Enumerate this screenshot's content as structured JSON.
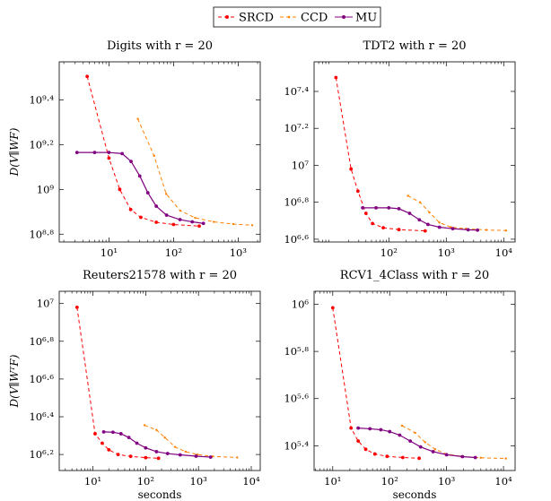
{
  "legend": {
    "position": "top-center",
    "entries": [
      {
        "name": "SRCD",
        "color": "#ff0000",
        "dash": "4,3",
        "marker": "dot"
      },
      {
        "name": "CCD",
        "color": "#ff8000",
        "dash": "4,3",
        "marker": "small-dot"
      },
      {
        "name": "MU",
        "color": "#800080",
        "dash": "",
        "marker": "dot"
      }
    ]
  },
  "chart_data": [
    {
      "type": "line",
      "title": "Digits with r = 20",
      "ylabel": "D(V∥WF)",
      "xlabel": "",
      "xscale": "log",
      "yscale": "log",
      "xlim": [
        1.7,
        2200
      ],
      "ylim_log10": [
        8.765,
        9.57
      ],
      "xticks": [
        {
          "v": 10,
          "label": "10¹"
        },
        {
          "v": 100,
          "label": "10²"
        },
        {
          "v": 1000,
          "label": "10³"
        }
      ],
      "yticks": [
        {
          "v": 8.8,
          "label": "10⁸·⁸"
        },
        {
          "v": 9,
          "label": "10⁹"
        },
        {
          "v": 9.2,
          "label": "10⁹·²"
        },
        {
          "v": 9.4,
          "label": "10⁹·⁴"
        }
      ],
      "grid": false,
      "series": [
        {
          "name": "SRCD",
          "points": [
            [
              4.6,
              9.505
            ],
            [
              10,
              9.14
            ],
            [
              14.7,
              9.0
            ],
            [
              21.7,
              8.91
            ],
            [
              31.2,
              8.875
            ],
            [
              54,
              8.853
            ],
            [
              100,
              8.843
            ],
            [
              250,
              8.836
            ]
          ]
        },
        {
          "name": "CCD",
          "points": [
            [
              28,
              9.315
            ],
            [
              50,
              9.15
            ],
            [
              77,
              8.98
            ],
            [
              127,
              8.905
            ],
            [
              216,
              8.873
            ],
            [
              420,
              8.855
            ],
            [
              840,
              8.845
            ],
            [
              1650,
              8.84
            ]
          ]
        },
        {
          "name": "MU",
          "points": [
            [
              3.2,
              9.165
            ],
            [
              6,
              9.165
            ],
            [
              10,
              9.165
            ],
            [
              16,
              9.16
            ],
            [
              22,
              9.125
            ],
            [
              30,
              9.06
            ],
            [
              40,
              8.985
            ],
            [
              54,
              8.925
            ],
            [
              78,
              8.885
            ],
            [
              126,
              8.865
            ],
            [
              195,
              8.855
            ],
            [
              290,
              8.848
            ]
          ]
        }
      ]
    },
    {
      "type": "line",
      "title": "TDT2 with r = 20",
      "ylabel": "",
      "xlabel": "",
      "xscale": "log",
      "yscale": "log",
      "xlim": [
        5,
        15800
      ],
      "ylim_log10": [
        6.585,
        7.56
      ],
      "xticks": [
        {
          "v": 100,
          "label": "10²"
        },
        {
          "v": 1000,
          "label": "10³"
        },
        {
          "v": 10000,
          "label": "10⁴"
        }
      ],
      "yticks": [
        {
          "v": 6.6,
          "label": "10⁶·⁶"
        },
        {
          "v": 6.8,
          "label": "10⁶·⁸"
        },
        {
          "v": 7,
          "label": "10⁷"
        },
        {
          "v": 7.2,
          "label": "10⁷·²"
        },
        {
          "v": 7.4,
          "label": "10⁷·⁴"
        }
      ],
      "grid": false,
      "series": [
        {
          "name": "SRCD",
          "points": [
            [
              12,
              7.475
            ],
            [
              22,
              6.98
            ],
            [
              29,
              6.86
            ],
            [
              40,
              6.74
            ],
            [
              52,
              6.685
            ],
            [
              80,
              6.662
            ],
            [
              150,
              6.652
            ],
            [
              430,
              6.645
            ]
          ]
        },
        {
          "name": "CCD",
          "points": [
            [
              215,
              6.835
            ],
            [
              350,
              6.8
            ],
            [
              510,
              6.745
            ],
            [
              760,
              6.69
            ],
            [
              1200,
              6.665
            ],
            [
              2200,
              6.657
            ],
            [
              5000,
              6.65
            ],
            [
              11000,
              6.647
            ]
          ]
        },
        {
          "name": "MU",
          "points": [
            [
              35,
              6.77
            ],
            [
              60,
              6.77
            ],
            [
              100,
              6.77
            ],
            [
              150,
              6.765
            ],
            [
              230,
              6.74
            ],
            [
              340,
              6.705
            ],
            [
              480,
              6.68
            ],
            [
              760,
              6.665
            ],
            [
              1300,
              6.657
            ],
            [
              2400,
              6.651
            ],
            [
              3500,
              6.649
            ]
          ]
        }
      ]
    },
    {
      "type": "line",
      "title": "Reuters21578 with r = 20",
      "ylabel": "D(V∥WᵀF)",
      "xlabel": "seconds",
      "xscale": "log",
      "yscale": "log",
      "xlim": [
        2.3,
        14800
      ],
      "ylim_log10": [
        6.115,
        7.065
      ],
      "xticks": [
        {
          "v": 10,
          "label": "10¹"
        },
        {
          "v": 100,
          "label": "10²"
        },
        {
          "v": 1000,
          "label": "10³"
        },
        {
          "v": 10000,
          "label": "10⁴"
        }
      ],
      "yticks": [
        {
          "v": 6.2,
          "label": "10⁶·²"
        },
        {
          "v": 6.4,
          "label": "10⁶·⁴"
        },
        {
          "v": 6.6,
          "label": "10⁶·⁶"
        },
        {
          "v": 6.8,
          "label": "10⁶·⁸"
        },
        {
          "v": 7,
          "label": "10⁷"
        }
      ],
      "grid": false,
      "series": [
        {
          "name": "SRCD",
          "points": [
            [
              5,
              6.98
            ],
            [
              11,
              6.31
            ],
            [
              15,
              6.26
            ],
            [
              20,
              6.225
            ],
            [
              30,
              6.2
            ],
            [
              52,
              6.19
            ],
            [
              100,
              6.183
            ],
            [
              175,
              6.18
            ]
          ]
        },
        {
          "name": "CCD",
          "points": [
            [
              95,
              6.355
            ],
            [
              160,
              6.33
            ],
            [
              230,
              6.29
            ],
            [
              360,
              6.24
            ],
            [
              570,
              6.215
            ],
            [
              950,
              6.2
            ],
            [
              1850,
              6.19
            ],
            [
              5400,
              6.184
            ]
          ]
        },
        {
          "name": "MU",
          "points": [
            [
              16,
              6.32
            ],
            [
              24,
              6.318
            ],
            [
              34,
              6.31
            ],
            [
              48,
              6.29
            ],
            [
              68,
              6.26
            ],
            [
              100,
              6.235
            ],
            [
              160,
              6.215
            ],
            [
              260,
              6.205
            ],
            [
              450,
              6.198
            ],
            [
              900,
              6.191
            ],
            [
              1700,
              6.186
            ]
          ]
        }
      ]
    },
    {
      "type": "line",
      "title": "RCV1_4Class with r = 20",
      "ylabel": "",
      "xlabel": "seconds",
      "xscale": "log",
      "yscale": "log",
      "xlim": [
        4.7,
        16000
      ],
      "ylim_log10": [
        5.295,
        6.055
      ],
      "xticks": [
        {
          "v": 10,
          "label": "10¹"
        },
        {
          "v": 100,
          "label": "10²"
        },
        {
          "v": 1000,
          "label": "10³"
        },
        {
          "v": 10000,
          "label": "10⁴"
        }
      ],
      "yticks": [
        {
          "v": 5.4,
          "label": "10⁵·⁴"
        },
        {
          "v": 5.6,
          "label": "10⁵·⁶"
        },
        {
          "v": 5.8,
          "label": "10⁵·⁸"
        },
        {
          "v": 6,
          "label": "10⁶"
        }
      ],
      "grid": false,
      "series": [
        {
          "name": "SRCD",
          "points": [
            [
              10,
              5.985
            ],
            [
              21,
              5.475
            ],
            [
              28,
              5.42
            ],
            [
              38,
              5.385
            ],
            [
              55,
              5.365
            ],
            [
              90,
              5.355
            ],
            [
              170,
              5.35
            ],
            [
              330,
              5.347
            ]
          ]
        },
        {
          "name": "CCD",
          "points": [
            [
              165,
              5.485
            ],
            [
              280,
              5.455
            ],
            [
              420,
              5.415
            ],
            [
              630,
              5.385
            ],
            [
              1000,
              5.365
            ],
            [
              1800,
              5.355
            ],
            [
              4000,
              5.349
            ],
            [
              11000,
              5.346
            ]
          ]
        },
        {
          "name": "MU",
          "points": [
            [
              28,
              5.475
            ],
            [
              45,
              5.472
            ],
            [
              70,
              5.468
            ],
            [
              100,
              5.46
            ],
            [
              150,
              5.445
            ],
            [
              230,
              5.42
            ],
            [
              350,
              5.395
            ],
            [
              580,
              5.375
            ],
            [
              1000,
              5.362
            ],
            [
              1900,
              5.354
            ],
            [
              3200,
              5.35
            ]
          ]
        }
      ]
    }
  ]
}
